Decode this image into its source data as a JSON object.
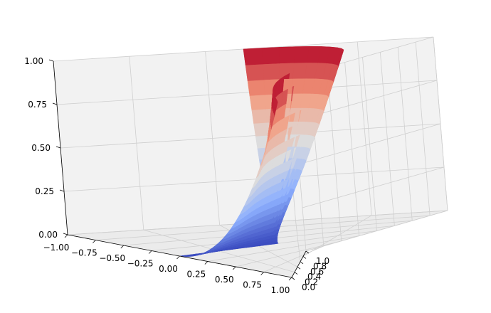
{
  "chart_data": {
    "type": "surface3d",
    "title": "",
    "xlabel": "",
    "ylabel": "",
    "zlabel": "",
    "colormap": "coolwarm",
    "function": "z = x^2 + y^2 over polar disk r in [0,1], theta in [0, 2pi) with a thin gap at theta near 0",
    "xlim": [
      -1.0,
      1.0
    ],
    "ylim": [
      0.0,
      1.0
    ],
    "zlim": [
      0.0,
      1.0
    ],
    "x_ticks": [
      "−1.00",
      "−0.75",
      "−0.50",
      "−0.25",
      "0.00",
      "0.25",
      "0.50",
      "0.75",
      "1.00"
    ],
    "y_ticks": [
      "0.0",
      "0.2",
      "0.4",
      "0.6",
      "0.8",
      "1.0"
    ],
    "z_ticks": [
      "0.00",
      "0.25",
      "0.50",
      "0.75",
      "1.00"
    ],
    "grid": true,
    "pane_color": "#f2f2f2",
    "colors": {
      "low": "#3b4cc0",
      "mid": "#dddddd",
      "high": "#b40426"
    }
  }
}
